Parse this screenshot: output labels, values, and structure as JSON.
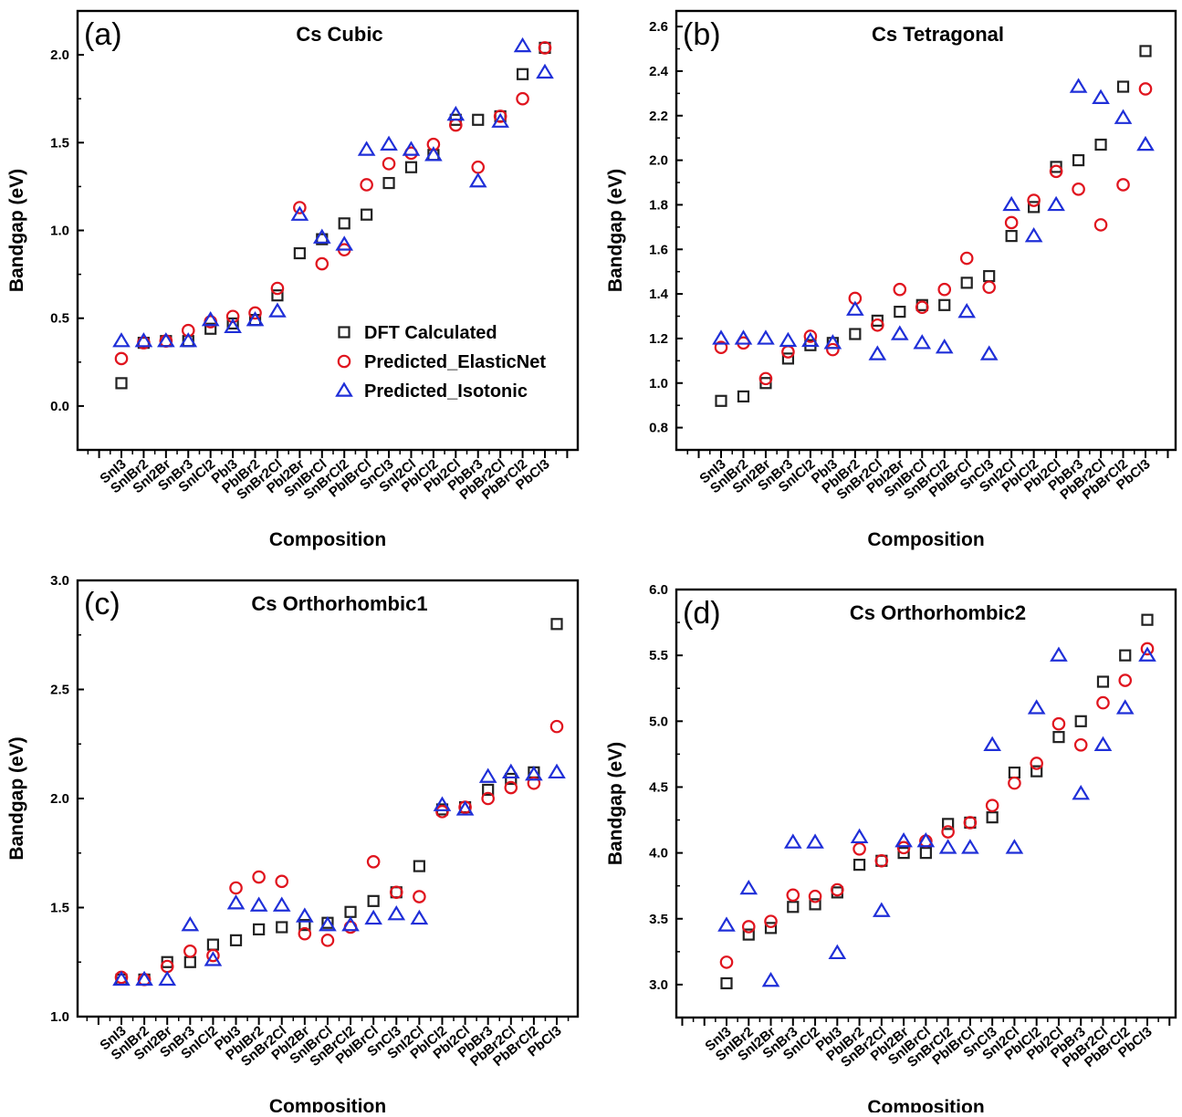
{
  "figure": {
    "series_styles": [
      {
        "name": "DFT Calculated",
        "marker": "square",
        "color": "#222222"
      },
      {
        "name": "Predicted_ElasticNet",
        "marker": "circle",
        "color": "#e0141e"
      },
      {
        "name": "Predicted_Isotonic",
        "marker": "triangle",
        "color": "#1f2fd8"
      }
    ]
  },
  "chart_data": [
    {
      "type": "scatter",
      "panel_label": "(a)",
      "title": "Cs Cubic",
      "xlabel": "Composition",
      "ylabel": "Bandgap (eV)",
      "ylim": [
        -0.25,
        2.25
      ],
      "yticks": [
        "0.0",
        "0.5",
        "1.0",
        "1.5",
        "2.0"
      ],
      "legend": "inside, lower-right",
      "categories": [
        "SnI3",
        "SnIBr2",
        "SnI2Br",
        "SnBr3",
        "SnICl2",
        "PbI3",
        "PbIBr2",
        "SnBr2Cl",
        "PbI2Br",
        "SnIBrCl",
        "SnBrCl2",
        "PbIBrCl",
        "SnCl3",
        "SnI2Cl",
        "PbICl2",
        "PbI2Cl",
        "PbBr3",
        "PbBr2Cl",
        "PbBrCl2",
        "PbCl3"
      ],
      "series": [
        {
          "name": "DFT Calculated",
          "values": [
            0.13,
            0.36,
            0.37,
            0.37,
            0.44,
            0.47,
            0.49,
            0.63,
            0.87,
            0.95,
            1.04,
            1.09,
            1.27,
            1.36,
            1.43,
            1.63,
            1.63,
            1.65,
            1.89,
            2.04
          ]
        },
        {
          "name": "Predicted_ElasticNet",
          "values": [
            0.27,
            0.36,
            0.37,
            0.43,
            0.48,
            0.51,
            0.53,
            0.67,
            1.13,
            0.81,
            0.89,
            1.26,
            1.38,
            1.44,
            1.49,
            1.6,
            1.36,
            1.65,
            1.75,
            2.04
          ]
        },
        {
          "name": "Predicted_Isotonic",
          "values": [
            0.37,
            0.37,
            0.37,
            0.37,
            0.49,
            0.45,
            0.49,
            0.54,
            1.09,
            0.96,
            0.92,
            1.46,
            1.49,
            1.46,
            1.43,
            1.66,
            1.28,
            1.62,
            2.05,
            1.9
          ]
        }
      ]
    },
    {
      "type": "scatter",
      "panel_label": "(b)",
      "title": "Cs Tetragonal",
      "xlabel": "Composition",
      "ylabel": "Bandgap (eV)",
      "ylim": [
        0.7,
        2.67
      ],
      "yticks": [
        "0.8",
        "1.0",
        "1.2",
        "1.4",
        "1.6",
        "1.8",
        "2.0",
        "2.2",
        "2.4",
        "2.6"
      ],
      "categories": [
        "SnI3",
        "SnIBr2",
        "SnI2Br",
        "SnBr3",
        "SnICl2",
        "PbI3",
        "PbIBr2",
        "SnBr2Cl",
        "PbI2Br",
        "SnIBrCl",
        "SnBrCl2",
        "PbIBrCl",
        "SnCl3",
        "SnI2Cl",
        "PbICl2",
        "PbI2Cl",
        "PbBr3",
        "PbBr2Cl",
        "PbBrCl2",
        "PbCl3"
      ],
      "series": [
        {
          "name": "DFT Calculated",
          "values": [
            0.92,
            0.94,
            1.0,
            1.11,
            1.17,
            1.18,
            1.22,
            1.28,
            1.32,
            1.35,
            1.35,
            1.45,
            1.48,
            1.66,
            1.79,
            1.97,
            2.0,
            2.07,
            2.33,
            2.49
          ]
        },
        {
          "name": "Predicted_ElasticNet",
          "values": [
            1.16,
            1.18,
            1.02,
            1.14,
            1.21,
            1.15,
            1.38,
            1.26,
            1.42,
            1.34,
            1.42,
            1.56,
            1.43,
            1.72,
            1.82,
            1.95,
            1.87,
            1.71,
            1.89,
            2.32
          ]
        },
        {
          "name": "Predicted_Isotonic",
          "values": [
            1.2,
            1.2,
            1.2,
            1.19,
            1.19,
            1.18,
            1.33,
            1.13,
            1.22,
            1.18,
            1.16,
            1.32,
            1.13,
            1.8,
            1.66,
            1.8,
            2.33,
            2.28,
            2.19,
            2.07
          ]
        }
      ]
    },
    {
      "type": "scatter",
      "panel_label": "(c)",
      "title": "Cs Orthorhombic1",
      "xlabel": "Composition",
      "ylabel": "Bandgap (eV)",
      "ylim": [
        1.0,
        3.0
      ],
      "yticks": [
        "1.0",
        "1.5",
        "2.0",
        "2.5",
        "3.0"
      ],
      "categories": [
        "SnI3",
        "SnIBr2",
        "SnI2Br",
        "SnBr3",
        "SnICl2",
        "PbI3",
        "PbIBr2",
        "SnBr2Cl",
        "PbI2Br",
        "SnIBrCl",
        "SnBrCl2",
        "PbIBrCl",
        "SnCl3",
        "SnI2Cl",
        "PbICl2",
        "PbI2Cl",
        "PbBr3",
        "PbBr2Cl",
        "PbBrCl2",
        "PbCl3"
      ],
      "series": [
        {
          "name": "DFT Calculated",
          "values": [
            1.17,
            1.17,
            1.25,
            1.25,
            1.33,
            1.35,
            1.4,
            1.41,
            1.42,
            1.43,
            1.48,
            1.53,
            1.57,
            1.69,
            1.95,
            1.96,
            2.04,
            2.09,
            2.12,
            2.8
          ]
        },
        {
          "name": "Predicted_ElasticNet",
          "values": [
            1.18,
            1.17,
            1.23,
            1.3,
            1.28,
            1.59,
            1.64,
            1.62,
            1.38,
            1.35,
            1.41,
            1.71,
            1.57,
            1.55,
            1.94,
            1.96,
            2.0,
            2.05,
            2.07,
            2.33
          ]
        },
        {
          "name": "Predicted_Isotonic",
          "values": [
            1.17,
            1.17,
            1.17,
            1.42,
            1.26,
            1.52,
            1.51,
            1.51,
            1.46,
            1.42,
            1.42,
            1.45,
            1.47,
            1.45,
            1.97,
            1.95,
            2.1,
            2.12,
            2.11,
            2.12
          ]
        }
      ]
    },
    {
      "type": "scatter",
      "panel_label": "(d)",
      "title": "Cs Orthorhombic2",
      "xlabel": "Composition",
      "ylabel": "Bandgap (eV)",
      "ylim": [
        2.75,
        6.0
      ],
      "yticks": [
        "3.0",
        "3.5",
        "4.0",
        "4.5",
        "5.0",
        "5.5",
        "6.0"
      ],
      "categories": [
        "SnI3",
        "SnIBr2",
        "SnI2Br",
        "SnBr3",
        "SnICl2",
        "PbI3",
        "PbIBr2",
        "SnBr2Cl",
        "PbI2Br",
        "SnIBrCl",
        "SnBrCl2",
        "PbIBrCl",
        "SnCl3",
        "SnI2Cl",
        "PbICl2",
        "PbI2Cl",
        "PbBr3",
        "PbBr2Cl",
        "PbBrCl2",
        "PbCl3"
      ],
      "series": [
        {
          "name": "DFT Calculated",
          "values": [
            3.01,
            3.38,
            3.43,
            3.59,
            3.61,
            3.7,
            3.91,
            3.94,
            4.0,
            4.0,
            4.22,
            4.23,
            4.27,
            4.61,
            4.62,
            4.88,
            5.0,
            5.3,
            5.5,
            5.77
          ]
        },
        {
          "name": "Predicted_ElasticNet",
          "values": [
            3.17,
            3.44,
            3.48,
            3.68,
            3.67,
            3.72,
            4.03,
            3.94,
            4.04,
            4.09,
            4.16,
            4.23,
            4.36,
            4.53,
            4.68,
            4.98,
            4.82,
            5.14,
            5.31,
            5.55
          ]
        },
        {
          "name": "Predicted_Isotonic",
          "values": [
            3.45,
            3.73,
            3.03,
            4.08,
            4.08,
            3.24,
            4.12,
            3.56,
            4.09,
            4.09,
            4.04,
            4.04,
            4.82,
            4.04,
            5.1,
            5.5,
            4.45,
            4.82,
            5.1,
            5.5
          ]
        }
      ]
    }
  ]
}
